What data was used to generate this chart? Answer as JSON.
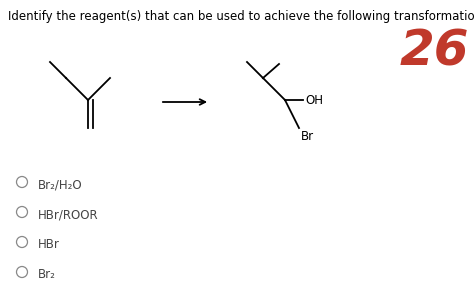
{
  "background_color": "#ffffff",
  "title_text": "Identify the reagent(s) that can be used to achieve the following transformation:",
  "title_fontsize": 8.5,
  "number_text": "26",
  "number_fontsize": 36,
  "number_color": "#c0392b",
  "options": [
    "Br₂/H₂O",
    "HBr/ROOR",
    "HBr",
    "Br₂"
  ],
  "options_fontsize": 8.5,
  "line_color": "#000000",
  "line_width": 1.3
}
